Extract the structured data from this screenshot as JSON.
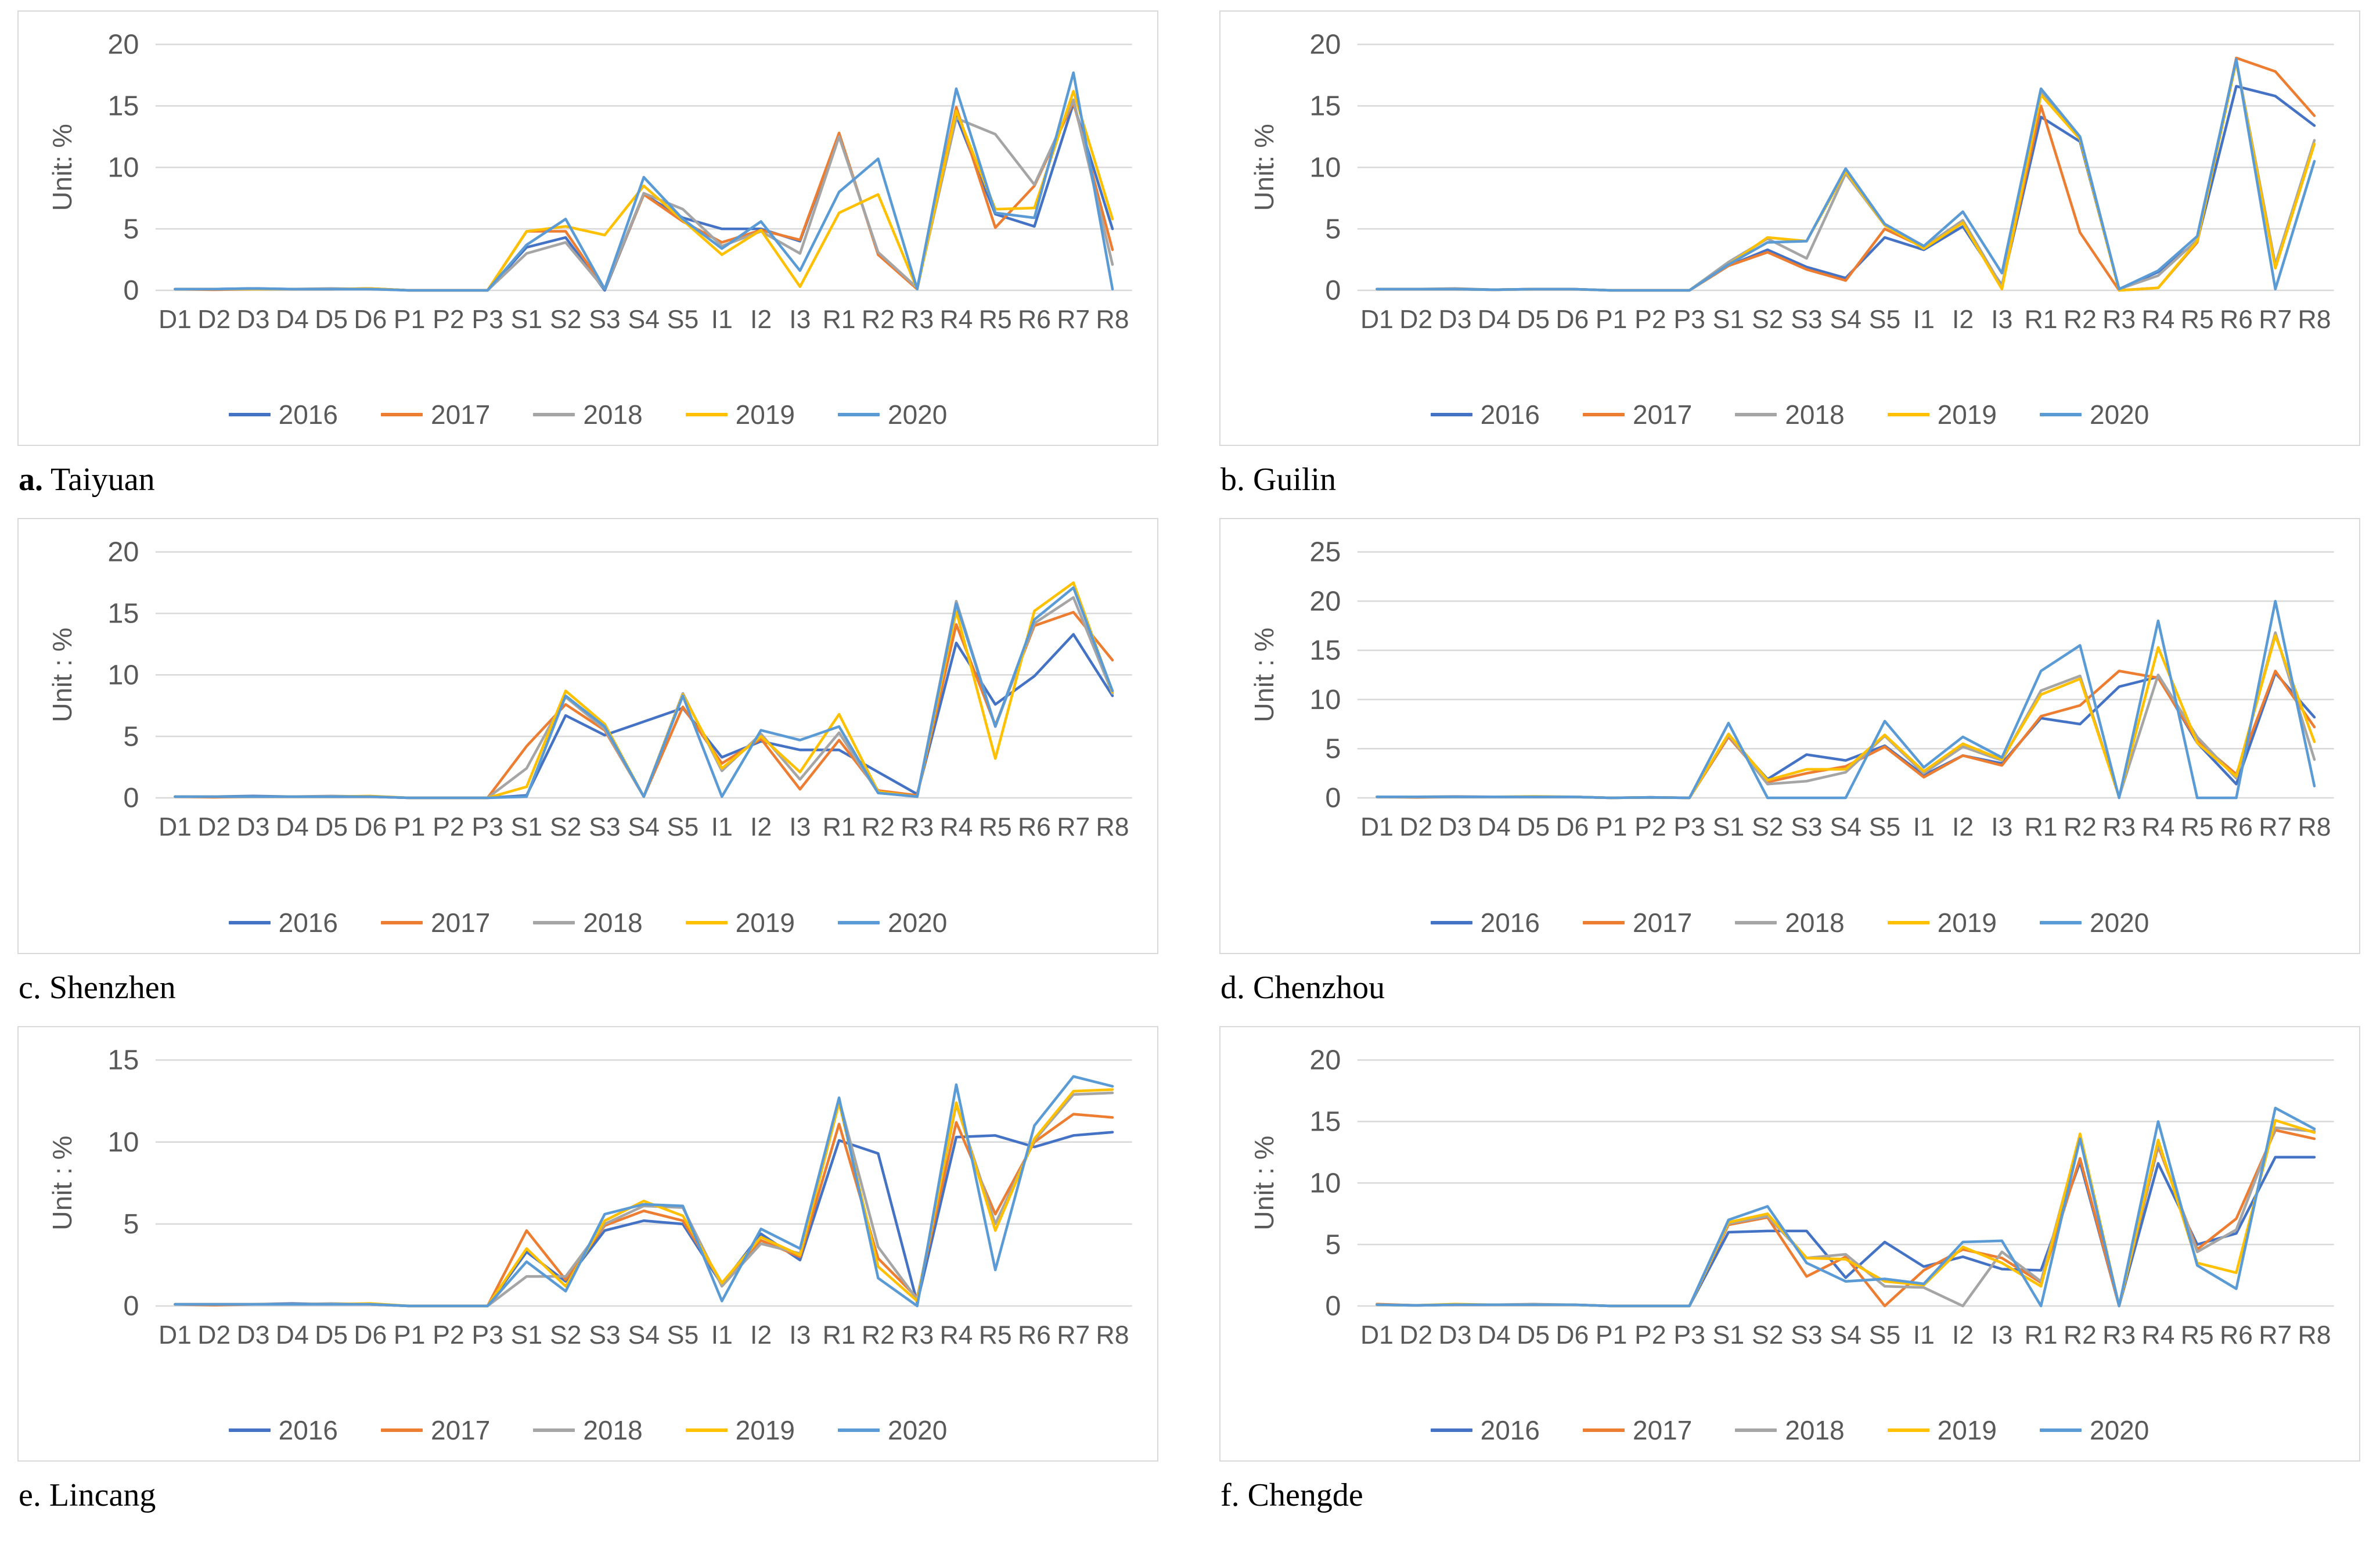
{
  "categories": [
    "D1",
    "D2",
    "D3",
    "D4",
    "D5",
    "D6",
    "P1",
    "P2",
    "P3",
    "S1",
    "S2",
    "S3",
    "S4",
    "S5",
    "I1",
    "I2",
    "I3",
    "R1",
    "R2",
    "R3",
    "R4",
    "R5",
    "R6",
    "R7",
    "R8"
  ],
  "chart_data": [
    {
      "type": "line",
      "caption_letter": "a.",
      "caption_name": "Taiyuan",
      "y_label": "Unit: %",
      "y_max": 20,
      "y_ticks": [
        0,
        5,
        10,
        15,
        20
      ],
      "grid": true,
      "legend_position": "bottom",
      "series": [
        {
          "name": "2016",
          "color": "#4472C4",
          "values": [
            0.1,
            0.1,
            0.15,
            0.1,
            0.1,
            0.15,
            0,
            0,
            0,
            3.5,
            4.3,
            0,
            7.8,
            5.9,
            5.0,
            5.0,
            4.0,
            12.7,
            3.0,
            0.2,
            14.2,
            6.2,
            5.2,
            15.2,
            5.0
          ]
        },
        {
          "name": "2017",
          "color": "#ED7D31",
          "values": [
            0.1,
            0.05,
            0.1,
            0.1,
            0.1,
            0.15,
            0,
            0,
            0,
            4.8,
            4.8,
            0.1,
            7.8,
            5.6,
            3.9,
            4.9,
            4.1,
            12.8,
            2.9,
            0.1,
            14.9,
            5.1,
            8.5,
            15.3,
            3.3
          ]
        },
        {
          "name": "2018",
          "color": "#A5A5A5",
          "values": [
            0.1,
            0.1,
            0.1,
            0.1,
            0.15,
            0.1,
            0,
            0,
            0,
            3.0,
            3.9,
            0.1,
            7.9,
            6.6,
            3.6,
            4.8,
            3.0,
            12.5,
            3.1,
            0.2,
            14.0,
            12.7,
            8.6,
            15.5,
            2.1
          ]
        },
        {
          "name": "2019",
          "color": "#FFC000",
          "values": [
            0.1,
            0.1,
            0.1,
            0.1,
            0.1,
            0.15,
            0,
            0,
            0,
            4.8,
            5.2,
            4.5,
            8.5,
            5.7,
            2.9,
            4.9,
            0.3,
            6.3,
            7.8,
            0.1,
            14.6,
            6.6,
            6.7,
            16.2,
            5.8
          ]
        },
        {
          "name": "2020",
          "color": "#5B9BD5",
          "values": [
            0.1,
            0.1,
            0.15,
            0.1,
            0.1,
            0.1,
            0,
            0,
            0,
            3.7,
            5.8,
            0.1,
            9.2,
            5.8,
            3.4,
            5.6,
            1.6,
            8.0,
            10.7,
            0.1,
            16.4,
            6.3,
            5.9,
            17.7,
            0.1
          ]
        }
      ]
    },
    {
      "type": "line",
      "caption_letter": "b.",
      "caption_name": "Guilin",
      "y_label": "Unit: %",
      "y_max": 20,
      "y_ticks": [
        0,
        5,
        10,
        15,
        20
      ],
      "grid": true,
      "legend_position": "bottom",
      "series": [
        {
          "name": "2016",
          "color": "#4472C4",
          "values": [
            0.1,
            0.1,
            0.1,
            0.05,
            0.1,
            0.1,
            0,
            0,
            0,
            2.0,
            3.3,
            1.9,
            1.0,
            4.3,
            3.3,
            5.2,
            0.4,
            14.1,
            12.1,
            0.1,
            1.5,
            4.0,
            16.6,
            15.8,
            13.4
          ]
        },
        {
          "name": "2017",
          "color": "#ED7D31",
          "values": [
            0.1,
            0.1,
            0.1,
            0.05,
            0.1,
            0.1,
            0,
            0,
            0,
            2.0,
            3.1,
            1.7,
            0.8,
            5.0,
            3.5,
            5.6,
            0.3,
            15.0,
            4.7,
            0,
            0.2,
            3.9,
            18.9,
            17.8,
            14.2
          ]
        },
        {
          "name": "2018",
          "color": "#A5A5A5",
          "values": [
            0.1,
            0.1,
            0.15,
            0.05,
            0.1,
            0.1,
            0,
            0,
            0,
            2.3,
            4.2,
            2.6,
            9.5,
            5.3,
            3.5,
            5.7,
            0.3,
            16.2,
            12.4,
            0.1,
            1.2,
            4.1,
            18.7,
            2.1,
            12.2
          ]
        },
        {
          "name": "2019",
          "color": "#FFC000",
          "values": [
            0.1,
            0.1,
            0.1,
            0.05,
            0.1,
            0.1,
            0,
            0,
            0,
            2.1,
            4.3,
            4.0,
            9.7,
            5.3,
            3.4,
            5.5,
            0.1,
            15.9,
            12.3,
            0,
            0.2,
            4.0,
            18.6,
            1.8,
            11.9
          ]
        },
        {
          "name": "2020",
          "color": "#5B9BD5",
          "values": [
            0.1,
            0.1,
            0.1,
            0.05,
            0.1,
            0.1,
            0,
            0,
            0,
            2.1,
            3.9,
            4.0,
            9.9,
            5.4,
            3.6,
            6.4,
            1.4,
            16.4,
            12.5,
            0.1,
            1.6,
            4.4,
            18.8,
            0.1,
            10.5
          ]
        }
      ]
    },
    {
      "type": "line",
      "caption_letter": "c.",
      "caption_name": "Shenzhen",
      "y_label": "Unit : %",
      "y_max": 20,
      "y_ticks": [
        0,
        5,
        10,
        15,
        20
      ],
      "grid": true,
      "legend_position": "bottom",
      "series": [
        {
          "name": "2016",
          "color": "#4472C4",
          "values": [
            0.1,
            0.1,
            0.15,
            0.1,
            0.1,
            0.1,
            0,
            0,
            0,
            0.2,
            6.7,
            5.1,
            6.2,
            7.3,
            3.3,
            4.6,
            3.9,
            3.9,
            2.1,
            0.3,
            12.6,
            7.6,
            9.9,
            13.3,
            8.3
          ]
        },
        {
          "name": "2017",
          "color": "#ED7D31",
          "values": [
            0.1,
            0.05,
            0.1,
            0.1,
            0.1,
            0.1,
            0,
            0,
            0,
            4.2,
            7.6,
            5.5,
            0.1,
            7.4,
            2.8,
            4.8,
            0.7,
            4.7,
            0.6,
            0.2,
            14.1,
            5.9,
            14.0,
            15.1,
            11.2
          ]
        },
        {
          "name": "2018",
          "color": "#A5A5A5",
          "values": [
            0.1,
            0.1,
            0.1,
            0.1,
            0.15,
            0.1,
            0,
            0,
            0,
            2.4,
            8.2,
            5.6,
            0.1,
            8.5,
            2.2,
            5.2,
            1.5,
            5.3,
            0.4,
            0.1,
            16.0,
            5.8,
            14.2,
            16.3,
            8.5
          ]
        },
        {
          "name": "2019",
          "color": "#FFC000",
          "values": [
            0.1,
            0.1,
            0.1,
            0.1,
            0.1,
            0.15,
            0,
            0,
            0,
            0.9,
            8.7,
            6.0,
            0.1,
            8.4,
            2.4,
            5.0,
            2.1,
            6.8,
            0.5,
            0.1,
            15.2,
            3.2,
            15.2,
            17.5,
            8.6
          ]
        },
        {
          "name": "2020",
          "color": "#5B9BD5",
          "values": [
            0.1,
            0.1,
            0.1,
            0.1,
            0.1,
            0.1,
            0,
            0,
            0,
            0.1,
            8.3,
            5.8,
            0.1,
            8.3,
            0.1,
            5.5,
            4.7,
            5.8,
            0.4,
            0.1,
            15.8,
            5.8,
            14.5,
            17.1,
            8.7
          ]
        }
      ]
    },
    {
      "type": "line",
      "caption_letter": "d.",
      "caption_name": "Chenzhou",
      "y_label": "Unit : %",
      "y_max": 25,
      "y_ticks": [
        0,
        5,
        10,
        15,
        20,
        25
      ],
      "grid": true,
      "legend_position": "bottom",
      "series": [
        {
          "name": "2016",
          "color": "#4472C4",
          "values": [
            0.1,
            0.1,
            0.1,
            0.1,
            0.1,
            0.1,
            0,
            0.05,
            0,
            6.3,
            1.9,
            4.4,
            3.8,
            5.3,
            2.3,
            4.3,
            3.5,
            8.1,
            7.5,
            11.3,
            12.3,
            5.6,
            1.4,
            12.7,
            8.2
          ]
        },
        {
          "name": "2017",
          "color": "#ED7D31",
          "values": [
            0.1,
            0.05,
            0.1,
            0.1,
            0.1,
            0.1,
            0,
            0.05,
            0,
            6.2,
            1.6,
            2.5,
            3.2,
            5.2,
            2.1,
            4.3,
            3.3,
            8.3,
            9.4,
            12.9,
            12.2,
            5.8,
            2.4,
            12.9,
            7.2
          ]
        },
        {
          "name": "2018",
          "color": "#A5A5A5",
          "values": [
            0.1,
            0.1,
            0.15,
            0.1,
            0.1,
            0.1,
            0,
            0.05,
            0,
            6.4,
            1.4,
            1.7,
            2.6,
            6.3,
            2.5,
            5.2,
            3.8,
            10.9,
            12.4,
            0.1,
            12.5,
            6.2,
            2.0,
            16.8,
            3.9
          ]
        },
        {
          "name": "2019",
          "color": "#FFC000",
          "values": [
            0.1,
            0.1,
            0.1,
            0.1,
            0.15,
            0.1,
            0,
            0.05,
            0,
            6.5,
            1.8,
            2.9,
            2.9,
            6.4,
            2.7,
            5.5,
            3.9,
            10.5,
            12.1,
            0.1,
            15.3,
            5.6,
            2.2,
            16.5,
            5.7
          ]
        },
        {
          "name": "2020",
          "color": "#5B9BD5",
          "values": [
            0.1,
            0.1,
            0.1,
            0.1,
            0.1,
            0.1,
            0,
            0.05,
            0,
            7.6,
            0,
            0,
            0,
            7.8,
            3.1,
            6.2,
            4.1,
            12.9,
            15.5,
            0,
            18.0,
            0,
            0,
            20.0,
            1.2
          ]
        }
      ]
    },
    {
      "type": "line",
      "caption_letter": "e.",
      "caption_name": "Lincang",
      "y_label": "Unit : %",
      "y_max": 15,
      "y_ticks": [
        0,
        5,
        10,
        15
      ],
      "grid": true,
      "legend_position": "bottom",
      "series": [
        {
          "name": "2016",
          "color": "#4472C4",
          "values": [
            0.1,
            0.1,
            0.1,
            0.15,
            0.1,
            0.1,
            0,
            0,
            0,
            3.3,
            1.5,
            4.6,
            5.2,
            5.0,
            1.3,
            4.4,
            2.8,
            10.1,
            9.3,
            0.2,
            10.3,
            10.4,
            9.7,
            10.4,
            10.6
          ]
        },
        {
          "name": "2017",
          "color": "#ED7D31",
          "values": [
            0.1,
            0.05,
            0.1,
            0.1,
            0.1,
            0.1,
            0,
            0,
            0,
            4.6,
            1.6,
            4.9,
            5.8,
            5.2,
            1.4,
            4.0,
            3.0,
            11.1,
            2.9,
            0.5,
            11.2,
            5.6,
            10.0,
            11.7,
            11.5
          ]
        },
        {
          "name": "2018",
          "color": "#A5A5A5",
          "values": [
            0.1,
            0.1,
            0.1,
            0.1,
            0.15,
            0.1,
            0,
            0,
            0,
            1.8,
            1.8,
            5.0,
            6.1,
            6.0,
            1.2,
            3.8,
            3.2,
            12.6,
            3.6,
            0.4,
            12.3,
            5.0,
            10.1,
            12.9,
            13.0
          ]
        },
        {
          "name": "2019",
          "color": "#FFC000",
          "values": [
            0.1,
            0.1,
            0.1,
            0.1,
            0.1,
            0.15,
            0,
            0,
            0,
            3.5,
            1.2,
            5.2,
            6.4,
            5.5,
            1.4,
            4.2,
            3.1,
            12.4,
            2.4,
            0.3,
            12.4,
            4.6,
            10.2,
            13.1,
            13.2
          ]
        },
        {
          "name": "2020",
          "color": "#5B9BD5",
          "values": [
            0.1,
            0.1,
            0.1,
            0.1,
            0.1,
            0.1,
            0,
            0,
            0,
            2.7,
            0.9,
            5.6,
            6.2,
            6.1,
            0.3,
            4.7,
            3.5,
            12.7,
            1.7,
            0,
            13.5,
            2.2,
            11.0,
            14.0,
            13.4
          ]
        }
      ]
    },
    {
      "type": "line",
      "caption_letter": "f.",
      "caption_name": "Chengde",
      "y_label": "Unit : %",
      "y_max": 20,
      "y_ticks": [
        0,
        5,
        10,
        15,
        20
      ],
      "grid": true,
      "legend_position": "bottom",
      "series": [
        {
          "name": "2016",
          "color": "#4472C4",
          "values": [
            0.1,
            0.05,
            0.1,
            0.1,
            0.1,
            0.1,
            0,
            0,
            0,
            6.0,
            6.1,
            6.1,
            2.3,
            5.2,
            3.2,
            4.0,
            3.0,
            2.9,
            11.7,
            0,
            11.6,
            5.0,
            5.9,
            12.1,
            12.1
          ]
        },
        {
          "name": "2017",
          "color": "#ED7D31",
          "values": [
            0.15,
            0.05,
            0.1,
            0.1,
            0.1,
            0.1,
            0,
            0,
            0,
            6.6,
            7.2,
            2.4,
            4.0,
            0,
            2.9,
            4.6,
            3.9,
            1.9,
            12.0,
            0,
            13.0,
            4.6,
            7.1,
            14.3,
            13.6
          ]
        },
        {
          "name": "2018",
          "color": "#A5A5A5",
          "values": [
            0.1,
            0.05,
            0.1,
            0.1,
            0.15,
            0.1,
            0,
            0,
            0,
            6.7,
            7.3,
            3.9,
            4.2,
            1.6,
            1.5,
            0,
            4.4,
            2.0,
            13.8,
            0,
            13.2,
            4.4,
            6.2,
            14.5,
            14.2
          ]
        },
        {
          "name": "2019",
          "color": "#FFC000",
          "values": [
            0.1,
            0.05,
            0.15,
            0.1,
            0.1,
            0.1,
            0,
            0,
            0,
            6.8,
            7.5,
            3.9,
            3.8,
            2.0,
            1.7,
            4.8,
            3.5,
            1.6,
            14.0,
            0,
            13.5,
            3.5,
            2.7,
            15.1,
            14.1
          ]
        },
        {
          "name": "2020",
          "color": "#5B9BD5",
          "values": [
            0.1,
            0.05,
            0.1,
            0.1,
            0.1,
            0.1,
            0,
            0,
            0,
            7.0,
            8.1,
            3.5,
            2.0,
            2.2,
            1.8,
            5.2,
            5.3,
            0,
            13.6,
            0,
            15.0,
            3.3,
            1.4,
            16.1,
            14.4
          ]
        }
      ]
    }
  ]
}
